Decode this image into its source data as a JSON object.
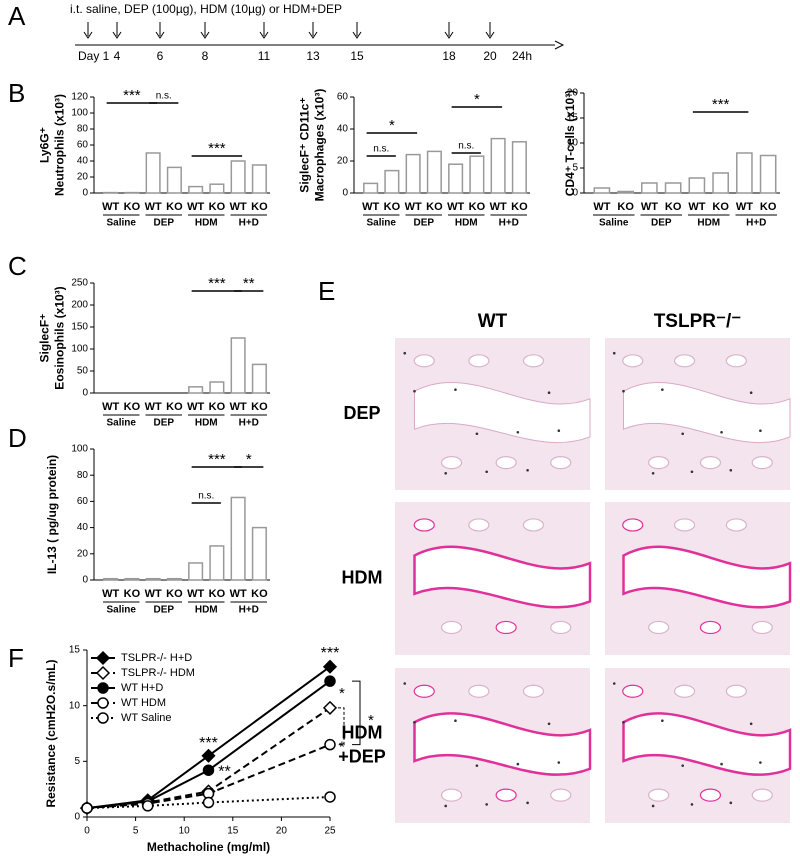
{
  "panels": [
    "A",
    "B",
    "C",
    "D",
    "E",
    "F"
  ],
  "timeline": {
    "text": "i.t. saline, DEP (100µg), HDM (10µg) or HDM+DEP",
    "days": [
      "Day 1",
      "4",
      "6",
      "8",
      "11",
      "13",
      "15",
      "18",
      "20",
      "24h"
    ]
  },
  "histology": {
    "columns": [
      "WT",
      "TSLPR⁻/⁻"
    ],
    "rows": [
      [
        "DEP"
      ],
      [
        "HDM"
      ],
      [
        "HDM",
        "+DEP"
      ]
    ]
  },
  "chart_data": [
    {
      "type": "bar",
      "ylabel": [
        "Ly6G⁺",
        "Neutrophils (x10³)"
      ],
      "categories": [
        "WT",
        "KO",
        "WT",
        "KO",
        "WT",
        "KO",
        "WT",
        "KO"
      ],
      "groups": [
        "Saline",
        "DEP",
        "HDM",
        "H+D"
      ],
      "values": [
        0.5,
        0.5,
        50,
        32,
        8,
        11,
        40,
        35
      ],
      "color": "#999999",
      "ylim": [
        0,
        120
      ],
      "yticks": [
        0,
        20,
        40,
        60,
        80,
        100,
        120
      ],
      "annotations": [
        "***",
        "n.s.",
        "***"
      ]
    },
    {
      "type": "bar",
      "ylabel": [
        "SiglecF⁺ CD11c⁺",
        "Macrophages (x10³)"
      ],
      "categories": [
        "WT",
        "KO",
        "WT",
        "KO",
        "WT",
        "KO",
        "WT",
        "KO"
      ],
      "groups": [
        "Saline",
        "DEP",
        "HDM",
        "H+D"
      ],
      "values": [
        6,
        14,
        24,
        26,
        18,
        23,
        34,
        32
      ],
      "color": "#999999",
      "ylim": [
        0,
        60
      ],
      "yticks": [
        0,
        20,
        40,
        60
      ],
      "annotations": [
        "*",
        "n.s.",
        "n.s.",
        "*"
      ]
    },
    {
      "type": "bar",
      "ylabel": [
        "CD4⁺ T-cells (x10³)"
      ],
      "categories": [
        "WT",
        "KO",
        "WT",
        "KO",
        "WT",
        "KO",
        "WT",
        "KO"
      ],
      "groups": [
        "Saline",
        "DEP",
        "HDM",
        "H+D"
      ],
      "values": [
        1,
        0.3,
        2,
        2,
        3,
        4,
        8,
        7.5
      ],
      "color": "#999999",
      "ylim": [
        0,
        20
      ],
      "yticks": [
        0,
        5,
        10,
        15,
        20
      ],
      "annotations": [
        "***"
      ]
    },
    {
      "type": "bar",
      "ylabel": [
        "SiglecF⁺",
        "Eosinophils (x10³)"
      ],
      "categories": [
        "WT",
        "KO",
        "WT",
        "KO",
        "WT",
        "KO",
        "WT",
        "KO"
      ],
      "groups": [
        "Saline",
        "DEP",
        "HDM",
        "H+D"
      ],
      "values": [
        0,
        0,
        0,
        0,
        14,
        25,
        125,
        65
      ],
      "color": "#999999",
      "ylim": [
        0,
        250
      ],
      "yticks": [
        0,
        50,
        100,
        150,
        200,
        250
      ],
      "annotations": [
        "***",
        "**"
      ]
    },
    {
      "type": "bar",
      "ylabel": [
        "IL-13 ( pg/ug protein)"
      ],
      "categories": [
        "WT",
        "KO",
        "WT",
        "KO",
        "WT",
        "KO",
        "WT",
        "KO"
      ],
      "groups": [
        "Saline",
        "DEP",
        "HDM",
        "H+D"
      ],
      "values": [
        1,
        1,
        1,
        1,
        13,
        26,
        63,
        40
      ],
      "color": "#999999",
      "ylim": [
        0,
        100
      ],
      "yticks": [
        0,
        20,
        40,
        60,
        80,
        100
      ],
      "annotations": [
        "***",
        "n.s.",
        "*"
      ]
    },
    {
      "type": "line",
      "xlabel": "Methacholine (mg/ml)",
      "ylabel": "Resistance (cmH2O.s/mL)",
      "x": [
        0,
        6.25,
        12.5,
        25
      ],
      "xlim": [
        0,
        25
      ],
      "xticks": [
        0,
        5,
        10,
        15,
        20,
        25
      ],
      "ylim": [
        0,
        15
      ],
      "yticks": [
        0,
        5,
        10,
        15
      ],
      "series": [
        {
          "name": "TSLPR-/- H+D",
          "color": "#000000",
          "marker": "diamond",
          "filled": true,
          "dash": "solid",
          "values": [
            0.8,
            1.5,
            5.5,
            13.5
          ]
        },
        {
          "name": "TSLPR-/- HDM",
          "color": "#000000",
          "marker": "diamond",
          "filled": false,
          "dash": "dashed",
          "values": [
            0.8,
            1.3,
            2.3,
            9.8
          ]
        },
        {
          "name": "WT H+D",
          "color": "#000000",
          "marker": "circle",
          "filled": true,
          "dash": "solid",
          "values": [
            0.8,
            1.4,
            4.2,
            12.2
          ]
        },
        {
          "name": "WT HDM",
          "color": "#000000",
          "marker": "circle",
          "filled": false,
          "dash": "dashed",
          "values": [
            0.8,
            1.2,
            2.1,
            6.5
          ]
        },
        {
          "name": "WT Saline",
          "color": "#000000",
          "marker": "circle",
          "filled": false,
          "dash": "dotted",
          "values": [
            0.8,
            1.0,
            1.3,
            1.8
          ]
        }
      ],
      "annotations": [
        "***",
        "**",
        "***",
        "*",
        "*",
        "*"
      ]
    }
  ]
}
